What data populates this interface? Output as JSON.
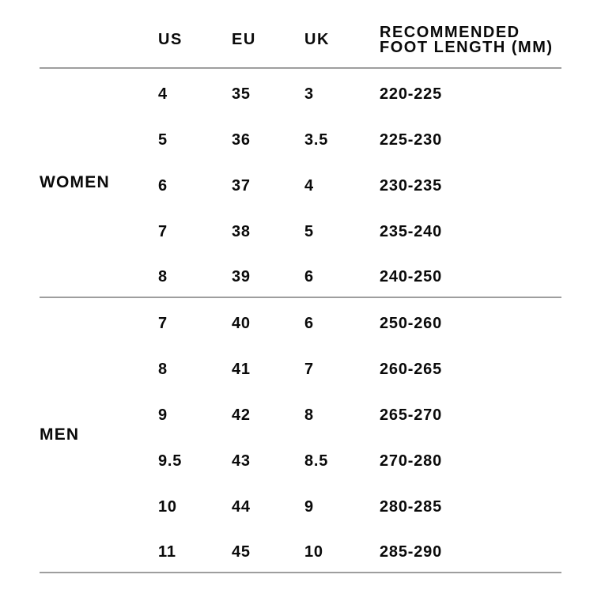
{
  "table": {
    "headers": {
      "us": "US",
      "eu": "EU",
      "uk": "UK",
      "foot_length": "RECOMMENDED\nFOOT LENGTH (MM)"
    },
    "groups": [
      {
        "label": "WOMEN",
        "rows": [
          {
            "us": "4",
            "eu": "35",
            "uk": "3",
            "foot": "220-225"
          },
          {
            "us": "5",
            "eu": "36",
            "uk": "3.5",
            "foot": "225-230"
          },
          {
            "us": "6",
            "eu": "37",
            "uk": "4",
            "foot": "230-235"
          },
          {
            "us": "7",
            "eu": "38",
            "uk": "5",
            "foot": "235-240"
          },
          {
            "us": "8",
            "eu": "39",
            "uk": "6",
            "foot": "240-250"
          }
        ]
      },
      {
        "label": "MEN",
        "rows": [
          {
            "us": "7",
            "eu": "40",
            "uk": "6",
            "foot": "250-260"
          },
          {
            "us": "8",
            "eu": "41",
            "uk": "7",
            "foot": "260-265"
          },
          {
            "us": "9",
            "eu": "42",
            "uk": "8",
            "foot": "265-270"
          },
          {
            "us": "9.5",
            "eu": "43",
            "uk": "8.5",
            "foot": "270-280"
          },
          {
            "us": "10",
            "eu": "44",
            "uk": "9",
            "foot": "280-285"
          },
          {
            "us": "11",
            "eu": "45",
            "uk": "10",
            "foot": "285-290"
          }
        ]
      }
    ]
  },
  "colors": {
    "text": "#0a0a0a",
    "divider": "#9e9e9e",
    "background": "#ffffff"
  }
}
